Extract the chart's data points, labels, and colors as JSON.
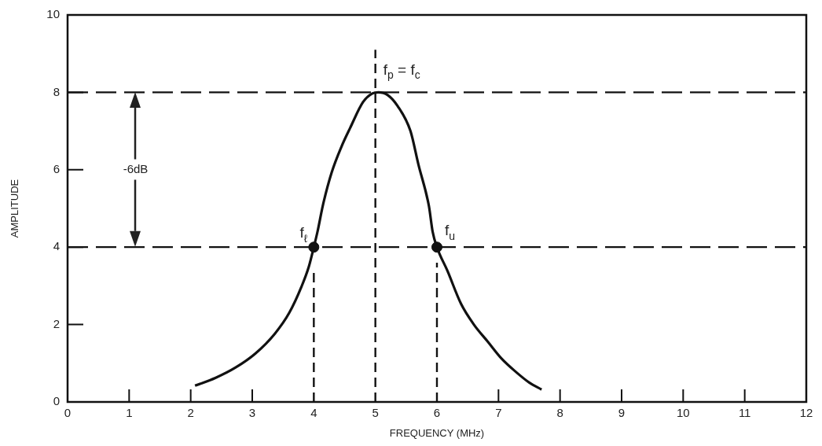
{
  "chart_data": {
    "type": "line",
    "xlabel": "FREQUENCY (MHz)",
    "ylabel": "AMPLITUDE",
    "xlim": [
      0,
      12
    ],
    "xticks": [
      0,
      1,
      2,
      3,
      4,
      5,
      6,
      7,
      8,
      9,
      10,
      11,
      12
    ],
    "ylim": [
      0,
      10
    ],
    "yticks": [
      0,
      2,
      4,
      6,
      8,
      10
    ],
    "marker": "none",
    "series": [
      {
        "color": "#111111",
        "x": [
          2.07,
          2.4,
          2.73,
          3.05,
          3.37,
          3.6,
          3.8,
          3.92,
          4.0,
          4.06,
          4.15,
          4.29,
          4.45,
          4.59,
          4.8,
          4.95,
          5.05,
          5.2,
          5.36,
          5.57,
          5.7,
          5.87,
          5.93,
          6.0,
          6.17,
          6.39,
          6.6,
          6.83,
          7.05,
          7.28,
          7.5,
          7.7
        ],
        "values": [
          0.42,
          0.62,
          0.89,
          1.25,
          1.77,
          2.3,
          2.98,
          3.5,
          4.0,
          4.4,
          5.1,
          5.93,
          6.6,
          7.08,
          7.75,
          7.97,
          8.0,
          7.93,
          7.65,
          7.0,
          6.13,
          5.06,
          4.4,
          4.0,
          3.39,
          2.54,
          2.0,
          1.55,
          1.12,
          0.78,
          0.5,
          0.32
        ]
      },
      {
        "color": "#111111",
        "line_style": "dashed",
        "x": [
          5,
          5
        ],
        "values": [
          0,
          9.1
        ]
      },
      {
        "color": "#111111",
        "line_style": "dashed",
        "x": [
          4,
          4
        ],
        "values": [
          0,
          3.4
        ]
      },
      {
        "color": "#111111",
        "line_style": "dashed",
        "x": [
          6,
          6
        ],
        "values": [
          0,
          3.6
        ]
      },
      {
        "type": "scatter",
        "color": "#111111",
        "marker": "circle",
        "x": [
          4,
          6
        ],
        "values": [
          4,
          4
        ]
      }
    ],
    "ref_lines": [
      {
        "axis": "y",
        "value": 8,
        "line_style": "dashed",
        "color": "#111111"
      },
      {
        "axis": "y",
        "value": 4,
        "line_style": "dashed",
        "color": "#111111"
      }
    ],
    "annotations": [
      "-6dB",
      {
        "text": "f$_{p}$ = f$_{c}$",
        "x": 5,
        "y": 9.1
      },
      {
        "text": "f$_{ℓ}$",
        "x": 4,
        "y": 4
      },
      {
        "text": "f$_{u}$",
        "x": 6,
        "y": 4
      }
    ]
  }
}
